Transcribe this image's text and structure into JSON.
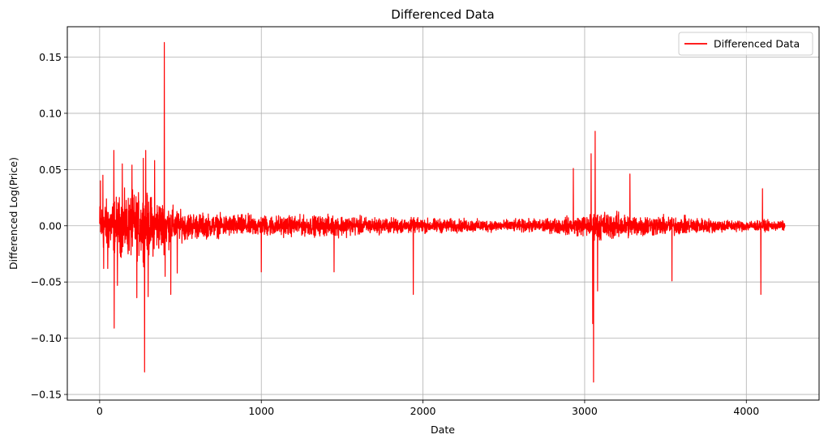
{
  "chart_data": {
    "type": "line",
    "title": "Differenced Data",
    "xlabel": "Date",
    "ylabel": "Differenced Log(Price)",
    "xlim": [
      -200,
      4450
    ],
    "ylim": [
      -0.155,
      0.177
    ],
    "xticks": [
      0,
      1000,
      2000,
      3000,
      4000
    ],
    "xtick_labels": [
      "0",
      "1000",
      "2000",
      "3000",
      "4000"
    ],
    "yticks": [
      -0.15,
      -0.1,
      -0.05,
      0.0,
      0.05,
      0.1,
      0.15
    ],
    "ytick_labels": [
      "−0.15",
      "−0.10",
      "−0.05",
      "0.00",
      "0.05",
      "0.10",
      "0.15"
    ],
    "grid": true,
    "legend_position": "top-right",
    "series": [
      {
        "name": "Differenced Data",
        "color": "#ff0000",
        "n_points": 4240,
        "amplitude_envelope": [
          [
            0,
            0.03
          ],
          [
            100,
            0.035
          ],
          [
            200,
            0.04
          ],
          [
            300,
            0.038
          ],
          [
            400,
            0.03
          ],
          [
            500,
            0.018
          ],
          [
            700,
            0.014
          ],
          [
            1000,
            0.013
          ],
          [
            1300,
            0.012
          ],
          [
            1500,
            0.013
          ],
          [
            1700,
            0.01
          ],
          [
            2000,
            0.009
          ],
          [
            2500,
            0.007
          ],
          [
            2800,
            0.009
          ],
          [
            3000,
            0.013
          ],
          [
            3100,
            0.018
          ],
          [
            3300,
            0.014
          ],
          [
            3600,
            0.011
          ],
          [
            3900,
            0.007
          ],
          [
            4240,
            0.006
          ]
        ],
        "spikes": [
          [
            5,
            0.04
          ],
          [
            20,
            0.045
          ],
          [
            25,
            -0.038
          ],
          [
            50,
            -0.038
          ],
          [
            88,
            0.067
          ],
          [
            90,
            -0.091
          ],
          [
            110,
            -0.053
          ],
          [
            140,
            0.055
          ],
          [
            200,
            0.054
          ],
          [
            230,
            -0.064
          ],
          [
            270,
            0.06
          ],
          [
            278,
            -0.13
          ],
          [
            285,
            0.067
          ],
          [
            300,
            -0.063
          ],
          [
            340,
            0.058
          ],
          [
            400,
            0.163
          ],
          [
            405,
            -0.045
          ],
          [
            440,
            -0.061
          ],
          [
            480,
            -0.042
          ],
          [
            1000,
            -0.041
          ],
          [
            1450,
            -0.041
          ],
          [
            1940,
            -0.061
          ],
          [
            2930,
            0.051
          ],
          [
            3040,
            0.064
          ],
          [
            3050,
            -0.087
          ],
          [
            3055,
            -0.139
          ],
          [
            3065,
            0.084
          ],
          [
            3080,
            -0.058
          ],
          [
            3280,
            0.046
          ],
          [
            3540,
            -0.049
          ],
          [
            4090,
            -0.061
          ],
          [
            4100,
            0.033
          ]
        ]
      }
    ]
  }
}
